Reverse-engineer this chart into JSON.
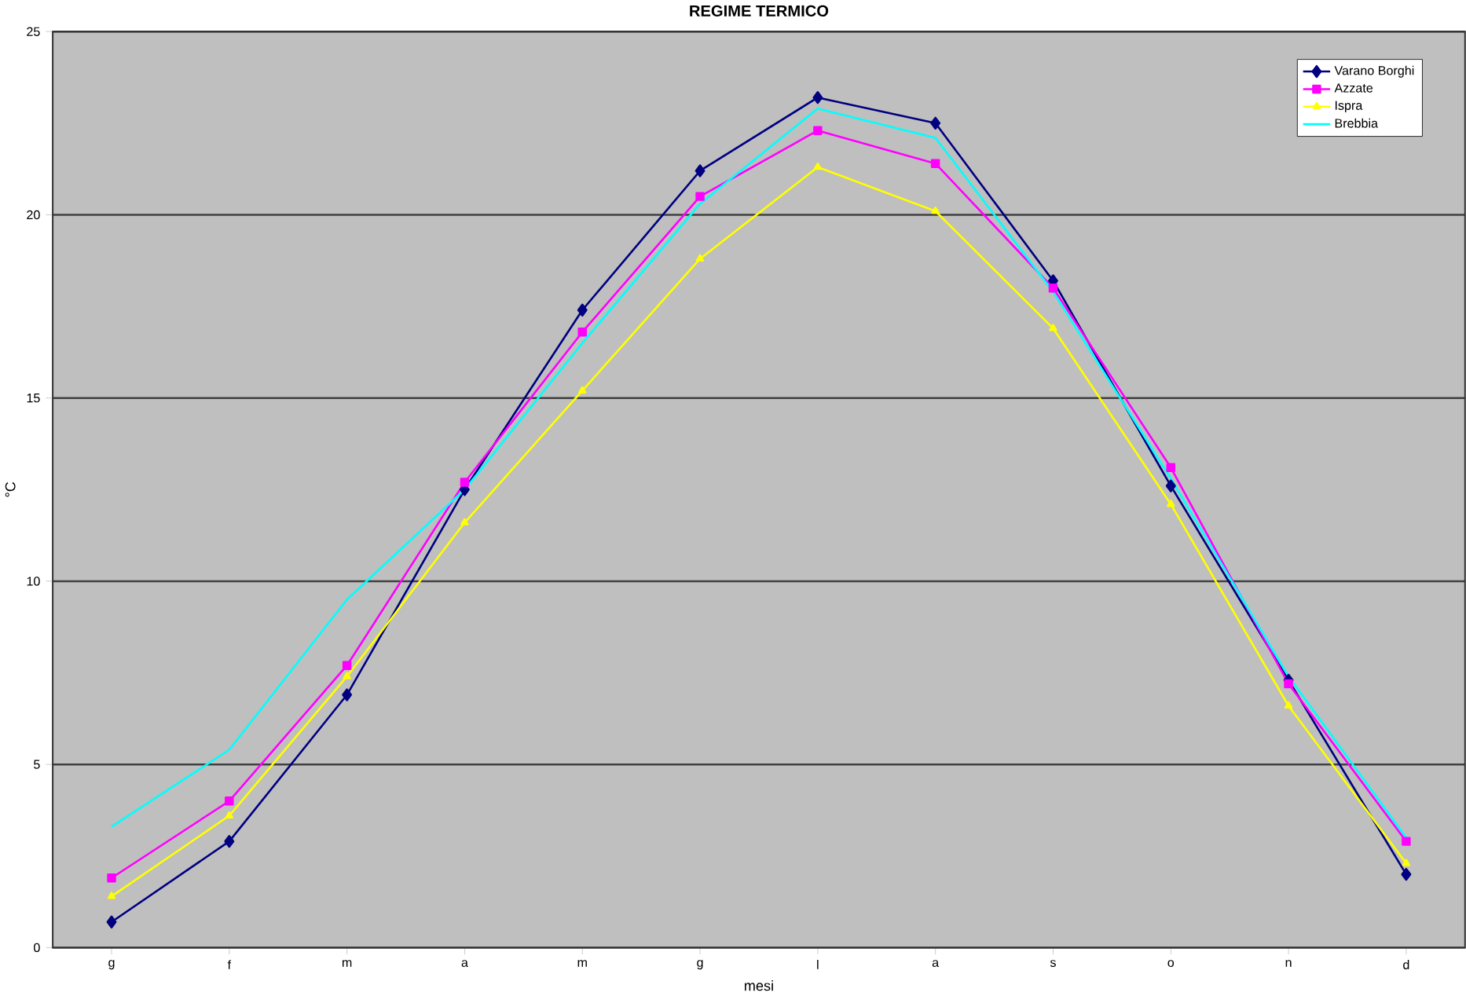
{
  "chart_data": {
    "type": "line",
    "title": "REGIME TERMICO",
    "xlabel": "mesi",
    "ylabel": "°C",
    "categories": [
      "g",
      "f",
      "m",
      "a",
      "m",
      "g",
      "l",
      "a",
      "s",
      "o",
      "n",
      "d"
    ],
    "series": [
      {
        "name": "Varano Borghi",
        "color": "#000080",
        "marker": "diamond",
        "values": [
          0.7,
          2.9,
          6.9,
          12.5,
          17.4,
          21.2,
          23.2,
          22.5,
          18.2,
          12.6,
          7.3,
          2.0
        ]
      },
      {
        "name": "Azzate",
        "color": "#ff00ff",
        "marker": "square",
        "values": [
          1.9,
          4.0,
          7.7,
          12.7,
          16.8,
          20.5,
          22.3,
          21.4,
          18.0,
          13.1,
          7.2,
          2.9
        ]
      },
      {
        "name": "Ispra",
        "color": "#ffff00",
        "marker": "triangle",
        "values": [
          1.4,
          3.6,
          7.4,
          11.6,
          15.2,
          18.8,
          21.3,
          20.1,
          16.9,
          12.1,
          6.6,
          2.3
        ]
      },
      {
        "name": "Brebbia",
        "color": "#00ffff",
        "marker": "none",
        "values": [
          3.3,
          5.4,
          9.5,
          12.5,
          16.5,
          20.3,
          22.9,
          22.1,
          17.9,
          12.8,
          7.4,
          3.0
        ]
      }
    ],
    "ylim": [
      0,
      25
    ],
    "yticks": [
      0,
      5,
      10,
      15,
      20,
      25
    ],
    "grid": "y",
    "legend": "top right",
    "line_style": "solid"
  }
}
